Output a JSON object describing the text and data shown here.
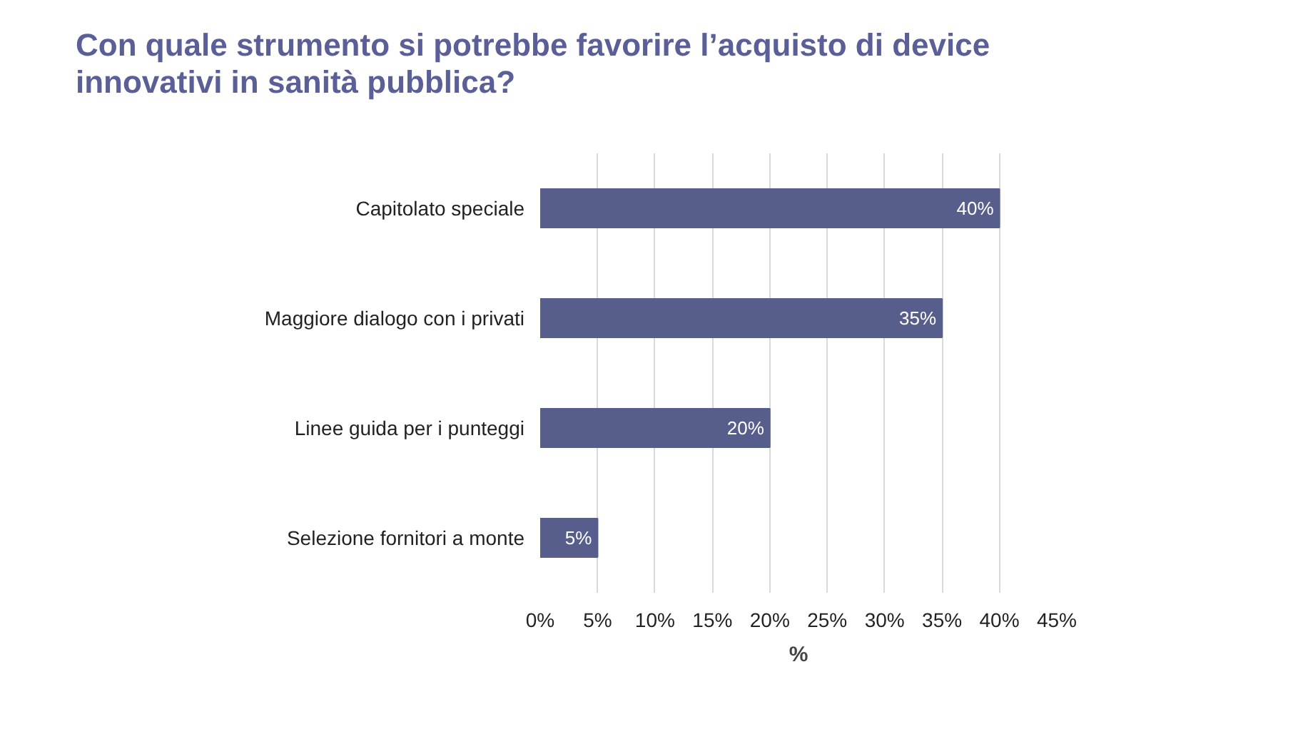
{
  "chart_data": {
    "type": "bar",
    "orientation": "horizontal",
    "title": "Con quale strumento si potrebbe favorire l’acquisto di device innovativi in sanità pubblica?",
    "categories": [
      "Capitolato speciale",
      "Maggiore dialogo con i privati",
      "Linee guida per i punteggi",
      "Selezione fornitori a monte"
    ],
    "values": [
      40,
      35,
      20,
      5
    ],
    "value_labels": [
      "40%",
      "35%",
      "20%",
      "5%"
    ],
    "color": "#575e8c",
    "xlabel": "%",
    "xlim": [
      0,
      45
    ],
    "xticks": [
      {
        "value": 0,
        "label": "0%"
      },
      {
        "value": 5,
        "label": "5%"
      },
      {
        "value": 10,
        "label": "10%"
      },
      {
        "value": 15,
        "label": "15%"
      },
      {
        "value": 20,
        "label": "20%"
      },
      {
        "value": 25,
        "label": "25%"
      },
      {
        "value": 30,
        "label": "30%"
      },
      {
        "value": 35,
        "label": "35%"
      },
      {
        "value": 40,
        "label": "40%"
      },
      {
        "value": 45,
        "label": "45%"
      }
    ],
    "grid": "x"
  }
}
